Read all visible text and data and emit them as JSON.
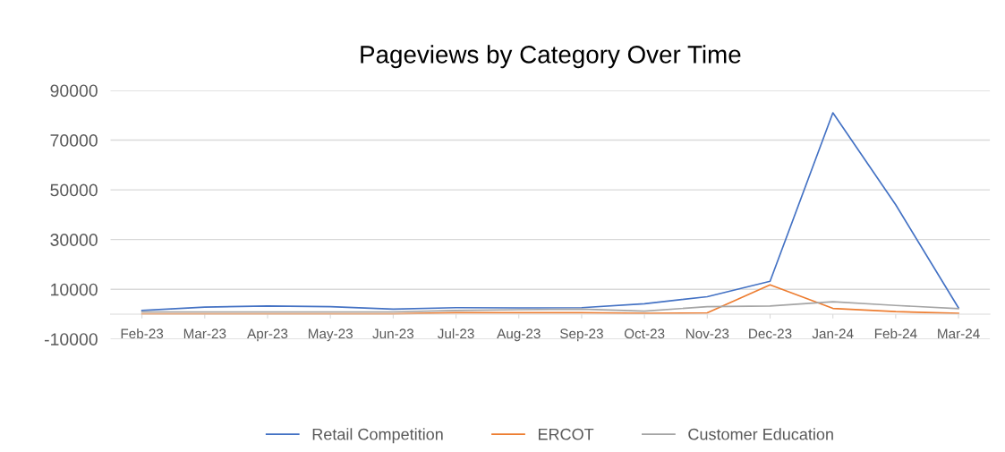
{
  "chart_data": {
    "type": "line",
    "title": "Pageviews by Category Over Time",
    "categories": [
      "Feb-23",
      "Mar-23",
      "Apr-23",
      "May-23",
      "Jun-23",
      "Jul-23",
      "Aug-23",
      "Sep-23",
      "Oct-23",
      "Nov-23",
      "Dec-23",
      "Jan-24",
      "Feb-24",
      "Mar-24"
    ],
    "series": [
      {
        "name": "Retail Competition",
        "color": "#4472c4",
        "values": [
          1500,
          2800,
          3300,
          3000,
          2000,
          2600,
          2500,
          2600,
          4200,
          7000,
          13200,
          81000,
          44000,
          2500
        ]
      },
      {
        "name": "ERCOT",
        "color": "#ed7d31",
        "values": [
          100,
          100,
          100,
          100,
          100,
          600,
          600,
          600,
          300,
          500,
          11800,
          2300,
          1000,
          300
        ]
      },
      {
        "name": "Customer Education",
        "color": "#a5a5a5",
        "values": [
          900,
          900,
          900,
          900,
          900,
          1500,
          1800,
          2000,
          1200,
          3000,
          3300,
          5000,
          3500,
          2200
        ]
      }
    ],
    "ylim": [
      -10000,
      90000
    ],
    "yticks": [
      -10000,
      10000,
      30000,
      50000,
      70000,
      90000
    ],
    "grid": "y",
    "legend": "bottom",
    "marker": "none",
    "line_style": "solid"
  }
}
